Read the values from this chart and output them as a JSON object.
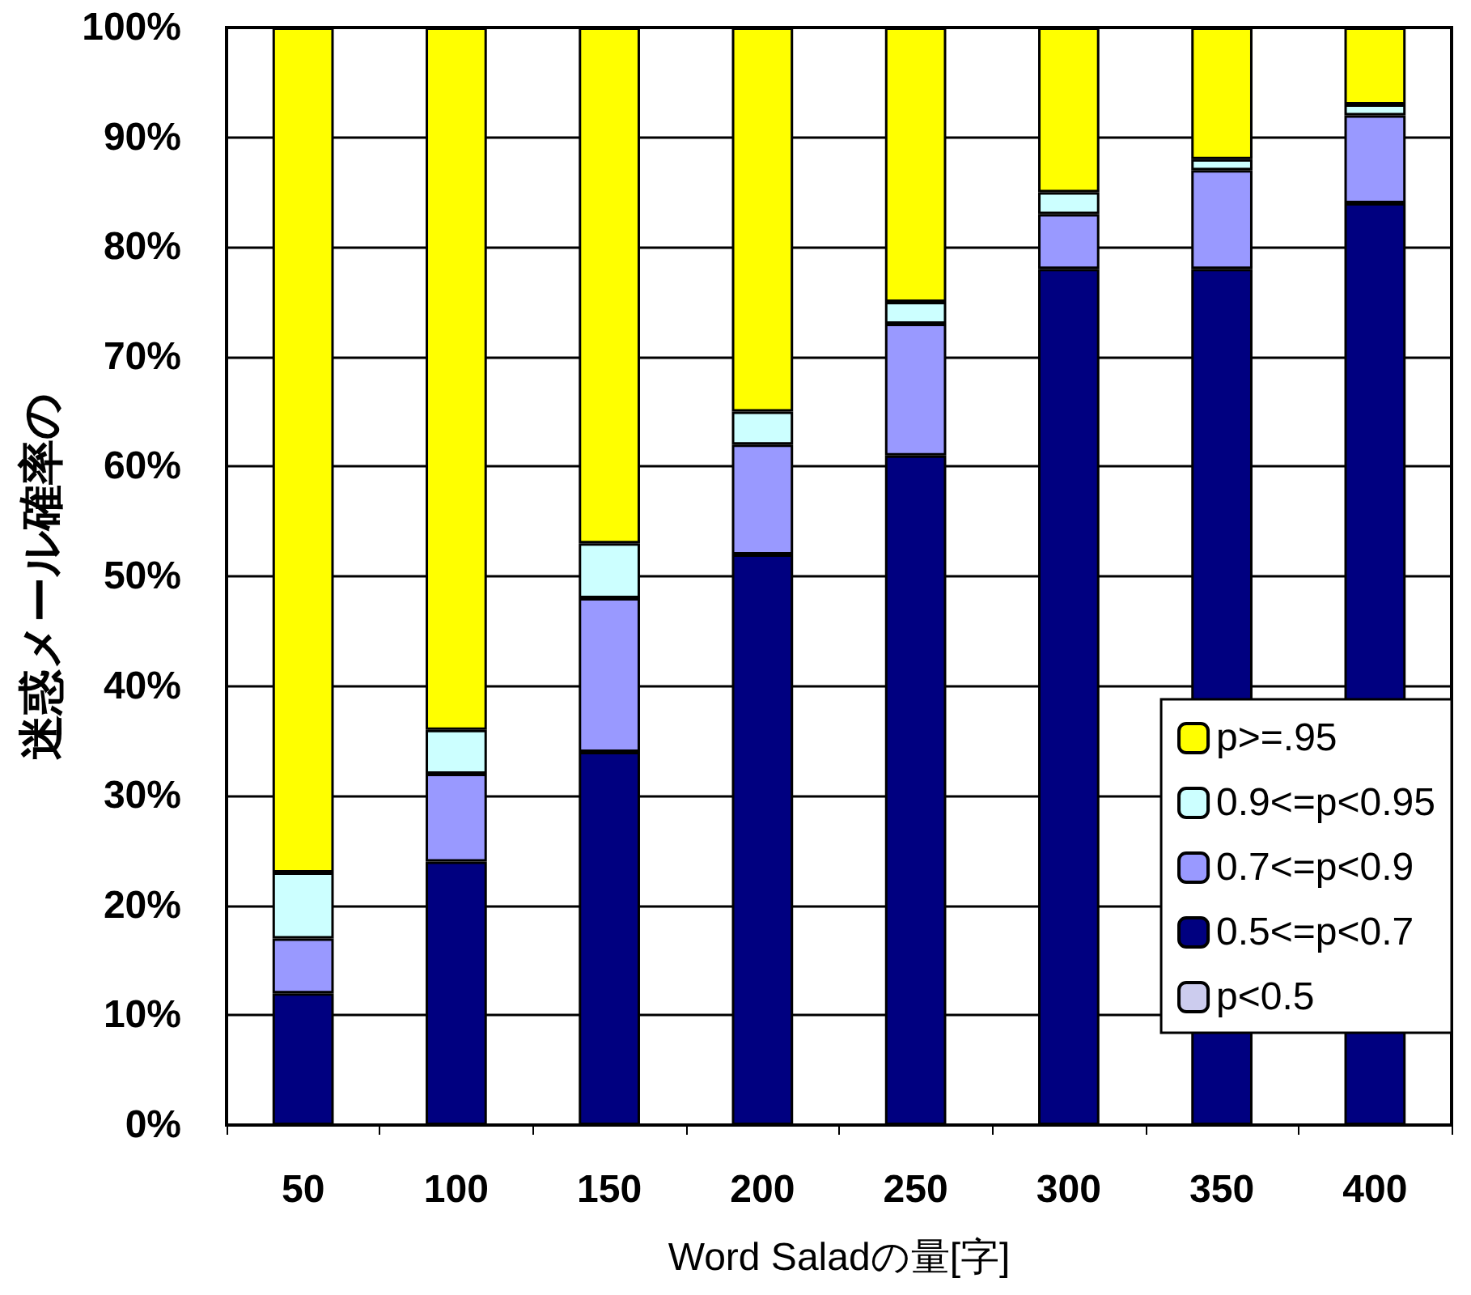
{
  "chart_data": {
    "type": "bar",
    "stacked": true,
    "xlabel": "Word Saladの量[字]",
    "ylabel": "迷惑メール確率の",
    "categories": [
      "50",
      "100",
      "150",
      "200",
      "250",
      "300",
      "350",
      "400"
    ],
    "series": [
      {
        "name": "p<0.5",
        "color": "#ccccee",
        "values": [
          0,
          0,
          0,
          0,
          0,
          0,
          0,
          0
        ]
      },
      {
        "name": "0.5<=p<0.7",
        "color": "#000080",
        "values": [
          12,
          24,
          34,
          52,
          61,
          78,
          78,
          84
        ]
      },
      {
        "name": "0.7<=p<0.9",
        "color": "#9999ff",
        "values": [
          5,
          8,
          14,
          10,
          12,
          5,
          9,
          8
        ]
      },
      {
        "name": "0.9<=p<0.95",
        "color": "#ccffff",
        "values": [
          6,
          4,
          5,
          3,
          2,
          2,
          1,
          1
        ]
      },
      {
        "name": "p>=.95",
        "color": "#ffff00",
        "values": [
          77,
          64,
          47,
          35,
          25,
          15,
          12,
          7
        ]
      }
    ],
    "ylim": [
      0,
      100
    ],
    "yticks": [
      {
        "value": 0,
        "label": "0%"
      },
      {
        "value": 10,
        "label": "10%"
      },
      {
        "value": 20,
        "label": "20%"
      },
      {
        "value": 30,
        "label": "30%"
      },
      {
        "value": 40,
        "label": "40%"
      },
      {
        "value": 50,
        "label": "50%"
      },
      {
        "value": 60,
        "label": "60%"
      },
      {
        "value": 70,
        "label": "70%"
      },
      {
        "value": 80,
        "label": "80%"
      },
      {
        "value": 90,
        "label": "90%"
      },
      {
        "value": 100,
        "label": "100%"
      }
    ],
    "grid": "y",
    "legend": "bottom right"
  }
}
